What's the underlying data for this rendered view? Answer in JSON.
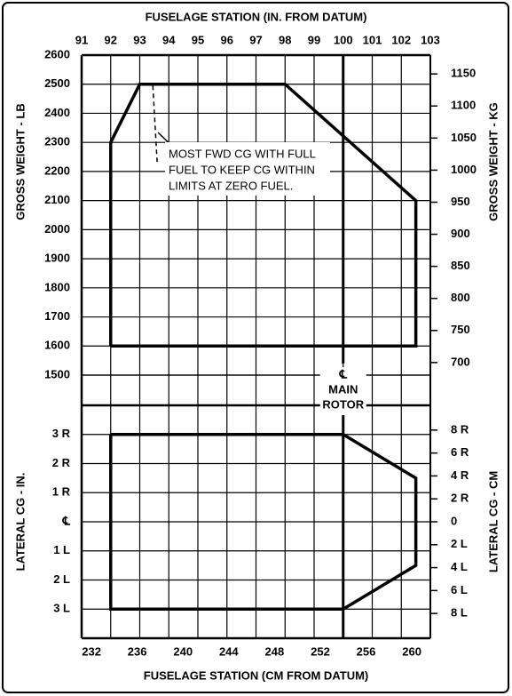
{
  "chart_data": [
    {
      "type": "line",
      "xlabel": "FUSELAGE STATION (IN. FROM DATUM)",
      "ylabel": "GROSS WEIGHT - LB",
      "y2label": "GROSS WEIGHT - KG",
      "xlim": [
        91,
        103
      ],
      "xticks": [
        91,
        92,
        93,
        94,
        95,
        96,
        97,
        98,
        99,
        100,
        101,
        102,
        103
      ],
      "ylim": [
        1500,
        2600
      ],
      "yticks": [
        1500,
        1600,
        1700,
        1800,
        1900,
        2000,
        2100,
        2200,
        2300,
        2400,
        2500,
        2600
      ],
      "y2lim": [
        680.39,
        1179.35
      ],
      "y2ticks": [
        700,
        750,
        800,
        850,
        900,
        950,
        1000,
        1050,
        1100,
        1150
      ],
      "grid": true,
      "series": [
        {
          "color": "#000000",
          "x": [
            92,
            92,
            93,
            98,
            102.5,
            102.5,
            92
          ],
          "values": [
            1600,
            2300,
            2500,
            2500,
            2100,
            1600,
            1600
          ]
        },
        {
          "color": "#000000",
          "style": "dashed",
          "x": [
            93.45,
            93.6
          ],
          "values": [
            2495,
            2230
          ]
        }
      ],
      "annotation": {
        "lines": [
          "MOST FWD CG WITH FULL",
          "FUEL TO KEEP CG WITHIN",
          "LIMITS AT ZERO FUEL."
        ]
      },
      "reference_line": {
        "x": 100,
        "label_lines": [
          "℄",
          "MAIN",
          "ROTOR"
        ]
      }
    },
    {
      "type": "line",
      "xlabel": "FUSELAGE STATION (CM FROM DATUM)",
      "ylabel": "LATERAL CG - IN.",
      "y2label": "LATERAL CG - CM",
      "xlim": [
        91,
        103
      ],
      "x2lim": [
        231.14,
        261.62
      ],
      "x2ticks": [
        232,
        236,
        240,
        244,
        248,
        252,
        256,
        260
      ],
      "ylim": [
        -4,
        4
      ],
      "yticks": [
        {
          "value": 3,
          "label": "3 R"
        },
        {
          "value": 2,
          "label": "2 R"
        },
        {
          "value": 1,
          "label": "1 R"
        },
        {
          "value": 0,
          "label": "℄"
        },
        {
          "value": -1,
          "label": "1 L"
        },
        {
          "value": -2,
          "label": "2 L"
        },
        {
          "value": -3,
          "label": "3 L"
        }
      ],
      "y2lim": [
        -10.16,
        10.16
      ],
      "y2ticks": [
        {
          "value": 8,
          "label": "8 R"
        },
        {
          "value": 6,
          "label": "6 R"
        },
        {
          "value": 4,
          "label": "4 R"
        },
        {
          "value": 2,
          "label": "2 R"
        },
        0,
        {
          "value": -2,
          "label": "2 L"
        },
        {
          "value": -4,
          "label": "4 L"
        },
        {
          "value": -6,
          "label": "6 L"
        },
        {
          "value": -8,
          "label": "8 L"
        }
      ],
      "grid": true,
      "series": [
        {
          "color": "#000000",
          "x": [
            92,
            100,
            102.5,
            102.5,
            100,
            92,
            92
          ],
          "values": [
            3,
            3,
            1.5,
            -1.5,
            -3,
            -3,
            3
          ]
        }
      ],
      "reference_line": {
        "x": 100
      }
    }
  ]
}
